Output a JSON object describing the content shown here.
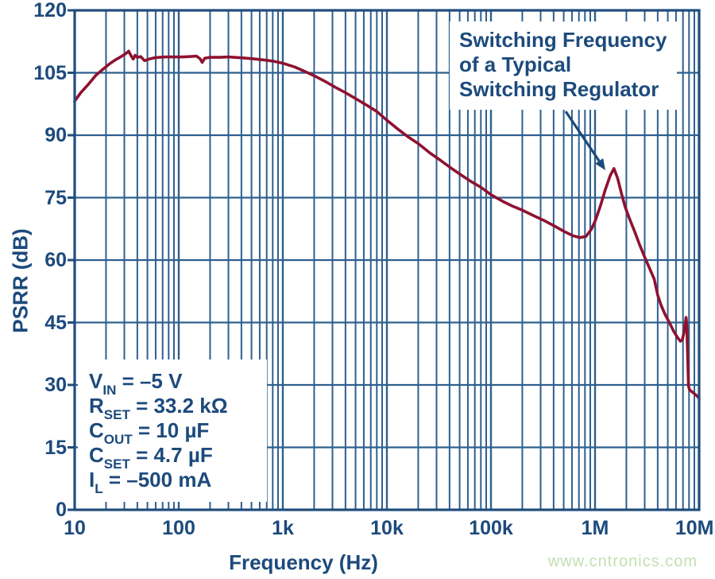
{
  "chart_data": {
    "type": "line",
    "title": "",
    "xlabel": "Frequency (Hz)",
    "ylabel": "PSRR (dB)",
    "x_scale": "log",
    "x_range": [
      10,
      10000000
    ],
    "y_range": [
      0,
      120
    ],
    "grid": "log major+minor vertical, 15 dB horizontal",
    "legend": "none",
    "x_ticks": [
      {
        "value": 10,
        "label": "10"
      },
      {
        "value": 100,
        "label": "100"
      },
      {
        "value": 1000,
        "label": "1k"
      },
      {
        "value": 10000,
        "label": "10k"
      },
      {
        "value": 100000,
        "label": "100k"
      },
      {
        "value": 1000000,
        "label": "1M"
      },
      {
        "value": 10000000,
        "label": "10M"
      }
    ],
    "y_ticks": [
      {
        "value": 0,
        "label": "0"
      },
      {
        "value": 15,
        "label": "15"
      },
      {
        "value": 30,
        "label": "30"
      },
      {
        "value": 45,
        "label": "45"
      },
      {
        "value": 60,
        "label": "60"
      },
      {
        "value": 75,
        "label": "75"
      },
      {
        "value": 90,
        "label": "90"
      },
      {
        "value": 105,
        "label": "105"
      },
      {
        "value": 120,
        "label": "120"
      }
    ],
    "series": [
      {
        "name": "PSRR",
        "points": [
          [
            10,
            98.2
          ],
          [
            11.5,
            100.3
          ],
          [
            13.5,
            102.2
          ],
          [
            16,
            104.4
          ],
          [
            19,
            106.0
          ],
          [
            22,
            107.3
          ],
          [
            25,
            108.2
          ],
          [
            28,
            108.9
          ],
          [
            31,
            109.6
          ],
          [
            33,
            110.2
          ],
          [
            35,
            109.0
          ],
          [
            36.5,
            108.3
          ],
          [
            38,
            109.2
          ],
          [
            40,
            108.7
          ],
          [
            43,
            108.9
          ],
          [
            47,
            107.9
          ],
          [
            52,
            108.3
          ],
          [
            58,
            108.6
          ],
          [
            65,
            108.7
          ],
          [
            75,
            108.8
          ],
          [
            90,
            108.8
          ],
          [
            110,
            108.8
          ],
          [
            130,
            108.9
          ],
          [
            148,
            109.0
          ],
          [
            160,
            108.4
          ],
          [
            168,
            107.5
          ],
          [
            178,
            108.5
          ],
          [
            200,
            108.7
          ],
          [
            250,
            108.7
          ],
          [
            300,
            108.8
          ],
          [
            400,
            108.6
          ],
          [
            500,
            108.4
          ],
          [
            650,
            108.1
          ],
          [
            800,
            107.8
          ],
          [
            1000,
            107.3
          ],
          [
            1300,
            106.4
          ],
          [
            1600,
            105.4
          ],
          [
            2000,
            104.3
          ],
          [
            2600,
            102.8
          ],
          [
            3200,
            101.5
          ],
          [
            4000,
            100.2
          ],
          [
            5000,
            98.8
          ],
          [
            6500,
            97.1
          ],
          [
            8000,
            95.7
          ],
          [
            10000,
            93.6
          ],
          [
            13000,
            91.3
          ],
          [
            16000,
            89.6
          ],
          [
            20000,
            88.0
          ],
          [
            26000,
            85.7
          ],
          [
            33000,
            83.9
          ],
          [
            42000,
            82.0
          ],
          [
            52000,
            80.4
          ],
          [
            65000,
            78.8
          ],
          [
            80000,
            77.5
          ],
          [
            100000,
            75.7
          ],
          [
            130000,
            74.1
          ],
          [
            160000,
            73.0
          ],
          [
            200000,
            72.0
          ],
          [
            260000,
            70.6
          ],
          [
            330000,
            69.4
          ],
          [
            420000,
            68.0
          ],
          [
            520000,
            66.7
          ],
          [
            620000,
            65.8
          ],
          [
            720000,
            65.4
          ],
          [
            820000,
            65.7
          ],
          [
            920000,
            67.4
          ],
          [
            1000000,
            69.3
          ],
          [
            1120000,
            72.8
          ],
          [
            1250000,
            76.8
          ],
          [
            1400000,
            80.3
          ],
          [
            1520000,
            82.0
          ],
          [
            1650000,
            79.6
          ],
          [
            1800000,
            75.9
          ],
          [
            1950000,
            72.7
          ],
          [
            2150000,
            69.9
          ],
          [
            2400000,
            66.9
          ],
          [
            2700000,
            63.5
          ],
          [
            3000000,
            60.7
          ],
          [
            3400000,
            57.6
          ],
          [
            3700000,
            55.5
          ],
          [
            4000000,
            51.6
          ],
          [
            4300000,
            49.2
          ],
          [
            4700000,
            47.0
          ],
          [
            5200000,
            44.9
          ],
          [
            5700000,
            42.9
          ],
          [
            6200000,
            41.4
          ],
          [
            6600000,
            40.5
          ],
          [
            6900000,
            40.9
          ],
          [
            7150000,
            42.5
          ],
          [
            7350000,
            44.6
          ],
          [
            7500000,
            46.2
          ],
          [
            7620000,
            44.3
          ],
          [
            7750000,
            37.5
          ],
          [
            7900000,
            29.8
          ],
          [
            8100000,
            28.8
          ],
          [
            8500000,
            28.4
          ],
          [
            9000000,
            27.9
          ],
          [
            9500000,
            27.4
          ],
          [
            10000000,
            26.8
          ]
        ]
      }
    ],
    "annotation": {
      "lines": [
        "Switching Frequency",
        "of a Typical",
        "Switching Regulator"
      ],
      "arrow_points_to": "PSRR peak at switching frequency (~1.5 MHz, 82 dB)"
    },
    "conditions": [
      {
        "main": "V",
        "sub": "IN",
        "rest": " = –5 V"
      },
      {
        "main": "R",
        "sub": "SET",
        "rest": " = 33.2 kΩ"
      },
      {
        "main": "C",
        "sub": "OUT",
        "rest": " = 10 µF"
      },
      {
        "main": "C",
        "sub": "SET",
        "rest": " = 4.7 µF"
      },
      {
        "main": "I",
        "sub": "L",
        "rest": " = –500 mA"
      }
    ]
  },
  "watermark": "www.cntronics.com",
  "colors": {
    "curve": "#8e1230",
    "grid": "#2e608f",
    "frame": "#1f4d7d",
    "text": "#1c4a7c",
    "arrow": "#1c4a7c",
    "watermark": "#c3dfb2",
    "background": "#ffffff"
  }
}
